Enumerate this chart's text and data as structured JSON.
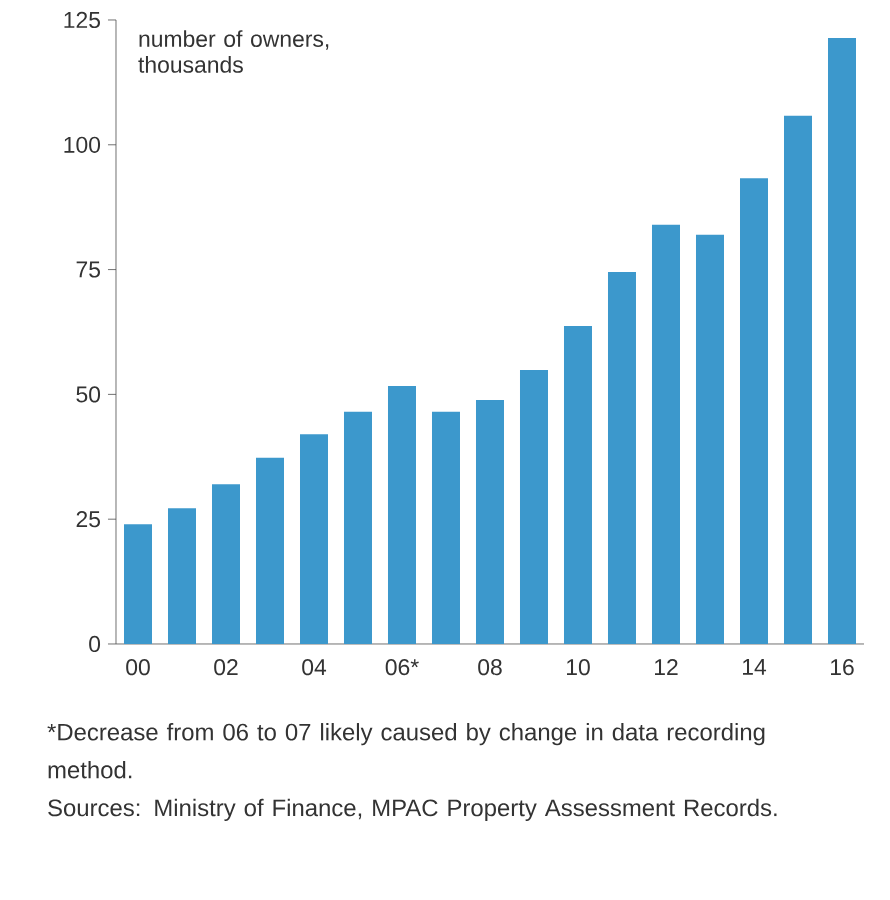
{
  "chart_data": {
    "type": "bar",
    "ylabel": "number of owners, thousands",
    "categories": [
      "00",
      null,
      "02",
      null,
      "04",
      null,
      "06*",
      null,
      "08",
      null,
      "10",
      null,
      "12",
      null,
      "14",
      null,
      "16"
    ],
    "values": [
      24,
      27.2,
      32,
      37.3,
      42,
      46.5,
      51.7,
      46.5,
      48.9,
      54.9,
      63.7,
      74.5,
      84,
      82,
      93.3,
      105.8,
      121.4
    ],
    "color": "#3c98cc",
    "ylim": [
      0,
      125
    ],
    "yticks": [
      0,
      25,
      50,
      75,
      100,
      125
    ],
    "annotations": [
      "*Decrease from 06 to 07 likely caused by change in data recording method.",
      "Sources: Ministry of Finance, MPAC Property Assessment Records."
    ]
  }
}
